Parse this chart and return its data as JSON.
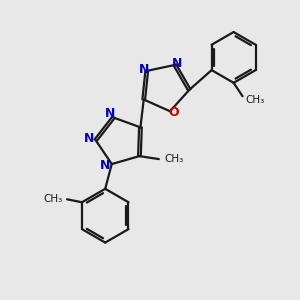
{
  "bg_color": "#e8e8e8",
  "bond_color": "#1a1a1a",
  "nitrogen_color": "#0000cc",
  "oxygen_color": "#cc0000",
  "line_width": 1.6,
  "figsize": [
    3.0,
    3.0
  ],
  "dpi": 100,
  "xlim": [
    0,
    10
  ],
  "ylim": [
    0,
    10
  ]
}
